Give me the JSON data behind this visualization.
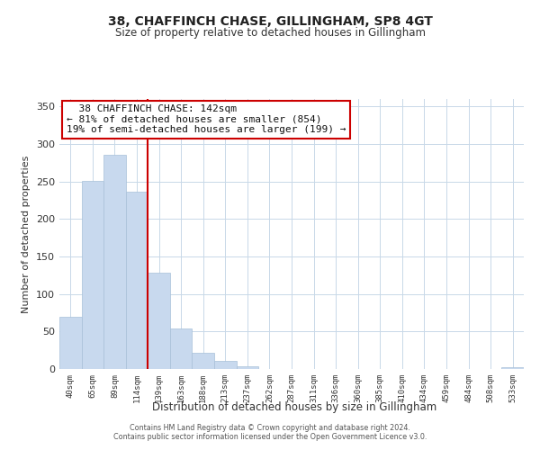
{
  "title": "38, CHAFFINCH CHASE, GILLINGHAM, SP8 4GT",
  "subtitle": "Size of property relative to detached houses in Gillingham",
  "xlabel": "Distribution of detached houses by size in Gillingham",
  "ylabel": "Number of detached properties",
  "bar_labels": [
    "40sqm",
    "65sqm",
    "89sqm",
    "114sqm",
    "139sqm",
    "163sqm",
    "188sqm",
    "213sqm",
    "237sqm",
    "262sqm",
    "287sqm",
    "311sqm",
    "336sqm",
    "360sqm",
    "385sqm",
    "410sqm",
    "434sqm",
    "459sqm",
    "484sqm",
    "508sqm",
    "533sqm"
  ],
  "bar_values": [
    70,
    251,
    286,
    237,
    128,
    54,
    22,
    11,
    4,
    0,
    0,
    0,
    0,
    0,
    0,
    0,
    0,
    0,
    0,
    0,
    2
  ],
  "bar_color": "#c8d9ee",
  "bar_edge_color": "#a8c0d8",
  "vline_color": "#cc0000",
  "vline_index": 4,
  "annotation_title": "38 CHAFFINCH CHASE: 142sqm",
  "annotation_line1": "← 81% of detached houses are smaller (854)",
  "annotation_line2": "19% of semi-detached houses are larger (199) →",
  "annotation_box_color": "#ffffff",
  "annotation_box_edge": "#cc0000",
  "ylim": [
    0,
    360
  ],
  "yticks": [
    0,
    50,
    100,
    150,
    200,
    250,
    300,
    350
  ],
  "footer1": "Contains HM Land Registry data © Crown copyright and database right 2024.",
  "footer2": "Contains public sector information licensed under the Open Government Licence v3.0.",
  "bg_color": "#ffffff",
  "grid_color": "#c8d8e8",
  "title_fontsize": 10,
  "subtitle_fontsize": 8.5
}
